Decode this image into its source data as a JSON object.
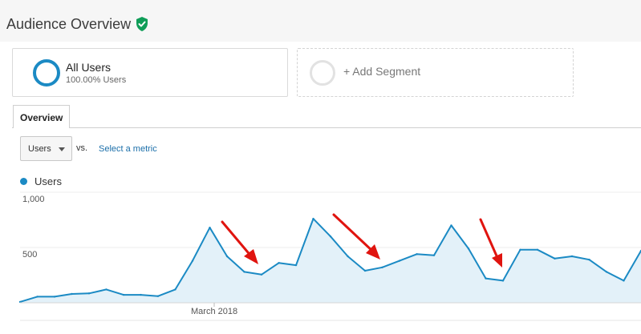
{
  "header": {
    "title": "Audience Overview",
    "verified_icon": "shield-check-icon",
    "verified_color": "#0f9d58"
  },
  "segments": {
    "active": {
      "name": "All Users",
      "detail": "100.00% Users",
      "color": "#1b8ac4"
    },
    "add_label": "+ Add Segment"
  },
  "tabs": [
    {
      "label": "Overview",
      "selected": true
    }
  ],
  "controls": {
    "metric_select": "Users",
    "vs_label": "vs.",
    "select_metric_link": "Select a metric"
  },
  "legend": {
    "label": "Users",
    "color": "#1b8ac4"
  },
  "arrows": {
    "color": "#e0140f",
    "count": 3
  },
  "chart_data": {
    "type": "area",
    "series": [
      {
        "name": "Users",
        "color": "#1b8ac4",
        "values": [
          8,
          55,
          55,
          80,
          85,
          120,
          72,
          72,
          60,
          120,
          380,
          680,
          420,
          280,
          255,
          360,
          340,
          760,
          600,
          420,
          290,
          320,
          380,
          440,
          430,
          700,
          490,
          220,
          200,
          480,
          480,
          400,
          420,
          390,
          280,
          200,
          470
        ]
      }
    ],
    "x_tick_labels": [
      "March 2018"
    ],
    "y_ticks": [
      {
        "value": 500,
        "label": "500"
      },
      {
        "value": 1000,
        "label": "1,000"
      }
    ],
    "ylim": [
      0,
      1000
    ],
    "grid": true,
    "legend_position": "top-left"
  }
}
